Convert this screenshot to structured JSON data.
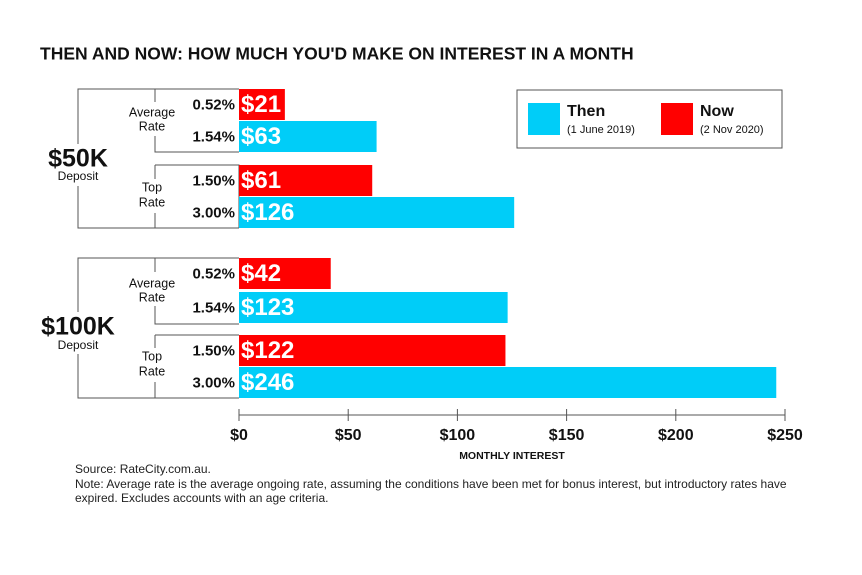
{
  "chart_data": {
    "type": "bar",
    "title": "THEN AND NOW: HOW MUCH YOU'D MAKE ON INTEREST IN A MONTH",
    "x_label": "MONTHLY INTEREST",
    "categories": [
      "0.52%",
      "1.54%",
      "1.50%",
      "3.00%",
      "0.52%",
      "1.54%",
      "1.50%",
      "3.00%"
    ],
    "series": [
      {
        "name": "Then",
        "date": "(1 June 2019)",
        "color": "#00cdf8",
        "values": [
          null,
          63,
          null,
          126,
          null,
          123,
          null,
          246
        ],
        "value_labels": [
          null,
          "$63",
          null,
          "$126",
          null,
          "$123",
          null,
          "$246"
        ]
      },
      {
        "name": "Now",
        "date": "(2 Nov 2020)",
        "color": "#ff0000",
        "values": [
          21,
          null,
          61,
          null,
          42,
          null,
          122,
          null
        ],
        "value_labels": [
          "$21",
          null,
          "$61",
          null,
          "$42",
          null,
          "$122",
          null
        ]
      }
    ],
    "groups": [
      {
        "amount": "$50K",
        "label": "Deposit",
        "rate_groups": [
          [
            "Average",
            "Rate"
          ],
          [
            "Top",
            "Rate"
          ]
        ]
      },
      {
        "amount": "$100K",
        "label": "Deposit",
        "rate_groups": [
          [
            "Average",
            "Rate"
          ],
          [
            "Top",
            "Rate"
          ]
        ]
      }
    ],
    "xlim": [
      0,
      250
    ],
    "xticks": [
      {
        "value": 0,
        "label": "$0"
      },
      {
        "value": 50,
        "label": "$50"
      },
      {
        "value": 100,
        "label": "$100"
      },
      {
        "value": 150,
        "label": "$150"
      },
      {
        "value": 200,
        "label": "$200"
      },
      {
        "value": 250,
        "label": "$250"
      }
    ],
    "source": "Source: RateCity.com.au.",
    "note": "Note: Average rate is the average ongoing rate, assuming the conditions have been met for bonus interest, but introductory rates have expired. Excludes accounts with an age criteria."
  }
}
